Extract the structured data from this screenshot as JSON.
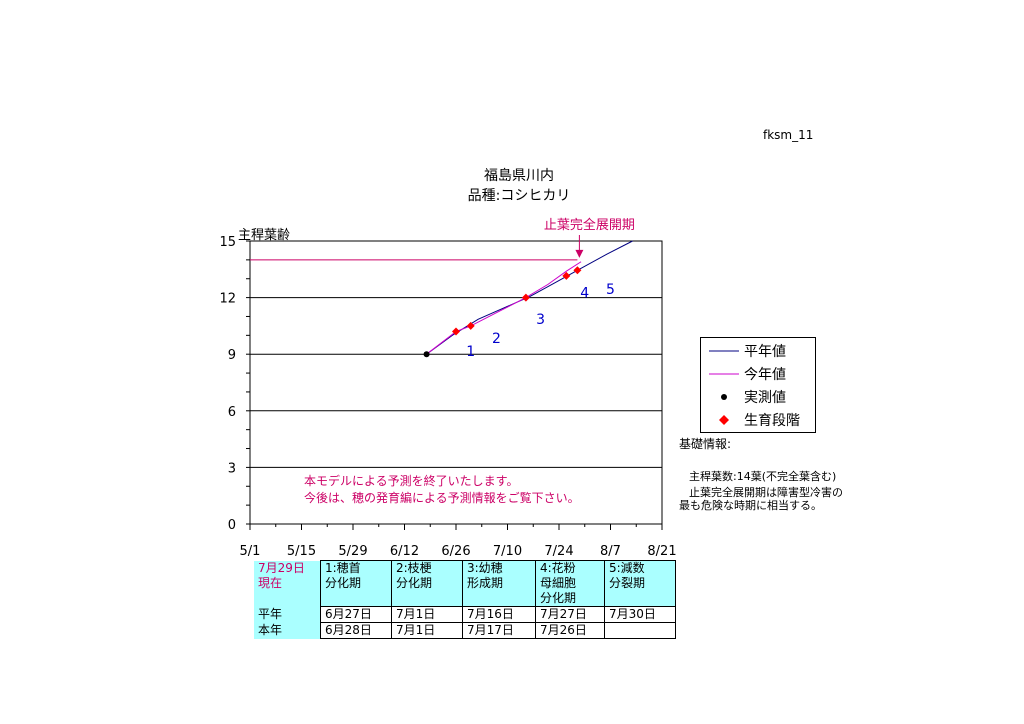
{
  "page": {
    "code": "fksm_11",
    "title": "福島県川内",
    "subtitle": "品種:コシヒカリ"
  },
  "chart_data": {
    "type": "line",
    "ylabel": "主稈葉齢",
    "ylim": [
      0,
      15
    ],
    "yticks": [
      0,
      3,
      6,
      9,
      12,
      15
    ],
    "xlim": [
      "5/1",
      "8/21"
    ],
    "xticks": [
      "5/1",
      "5/15",
      "5/29",
      "6/12",
      "6/26",
      "7/10",
      "7/24",
      "8/7",
      "8/21"
    ],
    "grid_y": true,
    "series": [
      {
        "name": "平年値",
        "color": "#000080",
        "style": "line",
        "x": [
          "6/18",
          "6/25",
          "7/2",
          "7/9",
          "7/16",
          "7/23",
          "7/30",
          "8/6",
          "8/13"
        ],
        "y": [
          9.0,
          10.0,
          10.85,
          11.45,
          12.05,
          12.8,
          13.55,
          14.3,
          15.0
        ]
      },
      {
        "name": "今年値",
        "color": "#cc00cc",
        "style": "line",
        "x": [
          "6/18",
          "6/26",
          "6/30",
          "7/7",
          "7/15",
          "7/21",
          "7/26",
          "7/30"
        ],
        "y": [
          9.0,
          10.2,
          10.5,
          11.2,
          12.0,
          12.7,
          13.4,
          13.9
        ]
      },
      {
        "name": "実測値",
        "color": "#000000",
        "style": "point",
        "x": [
          "6/18"
        ],
        "y": [
          9.0
        ]
      },
      {
        "name": "生育段階",
        "color": "#ff0000",
        "style": "diamond",
        "x": [
          "6/26",
          "6/30",
          "7/15",
          "7/26",
          "7/29"
        ],
        "y": [
          10.2,
          10.5,
          12.0,
          13.15,
          13.45
        ]
      }
    ],
    "reference_line": {
      "y": 14,
      "x_end": "7/29",
      "color": "#cc0066",
      "label": "止葉完全展開期"
    },
    "stage_labels": [
      {
        "label": "1",
        "x": "6/30",
        "y": 8.9
      },
      {
        "label": "2",
        "x": "7/7",
        "y": 9.6
      },
      {
        "label": "3",
        "x": "7/19",
        "y": 10.6
      },
      {
        "label": "4",
        "x": "7/31",
        "y": 12.0
      },
      {
        "label": "5",
        "x": "8/7",
        "y": 12.2
      }
    ],
    "annotation": [
      "本モデルによる予測を終了いたします。",
      "今後は、穂の発育編による予測情報をご覧下さい。"
    ]
  },
  "legend": {
    "items": [
      {
        "label": "平年値",
        "color": "#000080",
        "kind": "line"
      },
      {
        "label": "今年値",
        "color": "#cc00cc",
        "kind": "line"
      },
      {
        "label": "実測値",
        "color": "#000000",
        "kind": "dot"
      },
      {
        "label": "生育段階",
        "color": "#ff0000",
        "kind": "diamond"
      }
    ]
  },
  "notes": {
    "heading": "基礎情報:",
    "line1": "主稈葉数:14葉(不完全葉含む)",
    "line2": "止葉完全展開期は障害型冷害の",
    "line3": "最も危険な時期に相当する。"
  },
  "table": {
    "current_label": "7月29日\n現在",
    "headers": [
      "1:穂首\n分化期",
      "2:枝梗\n分化期",
      "3:幼穂\n形成期",
      "4:花粉\n母細胞\n分化期",
      "5:減数\n分裂期"
    ],
    "rows": [
      {
        "label": "平年",
        "cells": [
          "6月27日",
          "7月1日",
          "7月16日",
          "7月27日",
          "7月30日"
        ]
      },
      {
        "label": "本年",
        "cells": [
          "6月28日",
          "7月1日",
          "7月17日",
          "7月26日",
          ""
        ]
      }
    ]
  }
}
